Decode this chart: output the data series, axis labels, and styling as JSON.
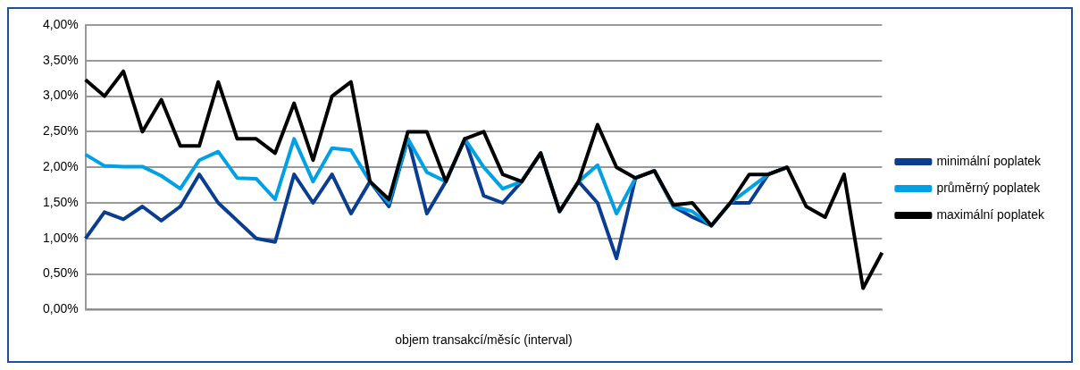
{
  "chart_data": {
    "type": "line",
    "xlabel": "objem transakcí/měsíc (interval)",
    "categories": [
      null,
      null,
      null,
      null,
      null,
      null,
      null,
      null,
      null,
      null,
      null,
      null,
      null,
      null,
      null,
      null,
      null,
      null,
      null,
      null,
      null,
      null,
      null,
      null,
      null,
      null,
      null,
      null,
      null,
      null,
      null,
      null,
      null,
      null,
      null,
      null,
      null,
      null,
      null,
      null,
      null,
      null,
      null
    ],
    "series": [
      {
        "name": "minimální poplatek",
        "color": "#0a3d91",
        "values": [
          1.0,
          1.37,
          1.27,
          1.45,
          1.25,
          1.45,
          1.9,
          1.5,
          1.25,
          1.0,
          0.95,
          1.9,
          1.5,
          1.9,
          1.35,
          1.8,
          1.45,
          2.4,
          1.35,
          1.8,
          2.4,
          1.6,
          1.5,
          1.8,
          2.2,
          1.38,
          1.8,
          1.5,
          0.72,
          1.85,
          1.95,
          1.45,
          1.3,
          1.18,
          1.5,
          1.5,
          1.9,
          2.0,
          null,
          null,
          null,
          null,
          null
        ]
      },
      {
        "name": "průměrný poplatek",
        "color": "#00a0e6",
        "values": [
          2.18,
          2.02,
          2.01,
          2.01,
          1.88,
          1.7,
          2.1,
          2.22,
          1.85,
          1.84,
          1.55,
          2.4,
          1.8,
          2.27,
          2.24,
          1.8,
          1.5,
          2.4,
          1.93,
          1.8,
          2.4,
          2.0,
          1.7,
          1.8,
          2.2,
          1.38,
          1.8,
          2.03,
          1.35,
          1.85,
          1.95,
          1.45,
          1.38,
          1.18,
          1.5,
          1.7,
          1.9,
          2.0,
          null,
          null,
          null,
          null,
          null
        ]
      },
      {
        "name": "maximální poplatek",
        "color": "#000000",
        "values": [
          3.23,
          3.0,
          3.35,
          2.5,
          2.95,
          2.3,
          2.3,
          3.2,
          2.4,
          2.4,
          2.2,
          2.9,
          2.1,
          3.0,
          3.2,
          1.8,
          1.55,
          2.5,
          2.5,
          1.8,
          2.4,
          2.5,
          1.9,
          1.8,
          2.2,
          1.38,
          1.8,
          2.6,
          2.0,
          1.85,
          1.95,
          1.47,
          1.5,
          1.18,
          1.5,
          1.9,
          1.9,
          2.0,
          1.45,
          1.3,
          1.9,
          0.3,
          0.8
        ]
      }
    ],
    "ylim": [
      0,
      4
    ],
    "yticks": [
      {
        "value": 0,
        "label": "0,00%"
      },
      {
        "value": 0.5,
        "label": "0,50%"
      },
      {
        "value": 1,
        "label": "1,00%"
      },
      {
        "value": 1.5,
        "label": "1,50%"
      },
      {
        "value": 2,
        "label": "2,00%"
      },
      {
        "value": 2.5,
        "label": "2,50%"
      },
      {
        "value": 3,
        "label": "3,00%"
      },
      {
        "value": 3.5,
        "label": "3,50%"
      },
      {
        "value": 4,
        "label": "4,00%"
      }
    ],
    "grid": "y",
    "legend": "right",
    "marker": "none",
    "line_style": "solid"
  }
}
